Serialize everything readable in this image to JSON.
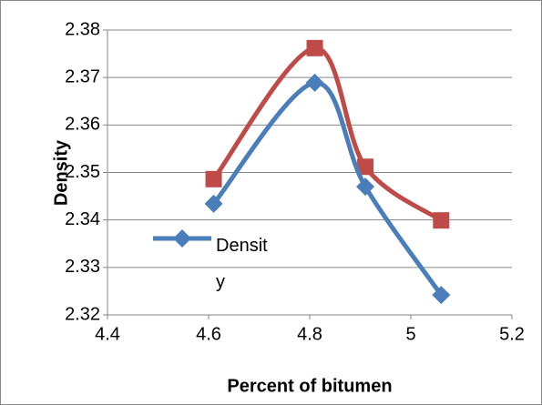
{
  "chart_data": {
    "type": "line",
    "x_label": "Percent of bitumen",
    "y_label": "Density",
    "series": [
      {
        "name": "Density",
        "color": "#4a7ebb",
        "marker": "diamond",
        "x": [
          4.61,
          4.81,
          4.91,
          5.06
        ],
        "values": [
          2.3434,
          2.3689,
          2.347,
          2.3242
        ]
      },
      {
        "color": "#be4b48",
        "marker": "square",
        "x": [
          4.61,
          4.81,
          4.91,
          5.06
        ],
        "values": [
          2.3486,
          2.3762,
          2.3512,
          2.3399
        ]
      }
    ],
    "xlim": [
      4.4,
      5.2
    ],
    "xticks": [
      4.4,
      4.6,
      4.8,
      5,
      5.2
    ],
    "ylim": [
      2.32,
      2.38
    ],
    "yticks": [
      2.32,
      2.33,
      2.34,
      2.35,
      2.36,
      2.37,
      2.38
    ],
    "grid": true,
    "smooth": true
  }
}
